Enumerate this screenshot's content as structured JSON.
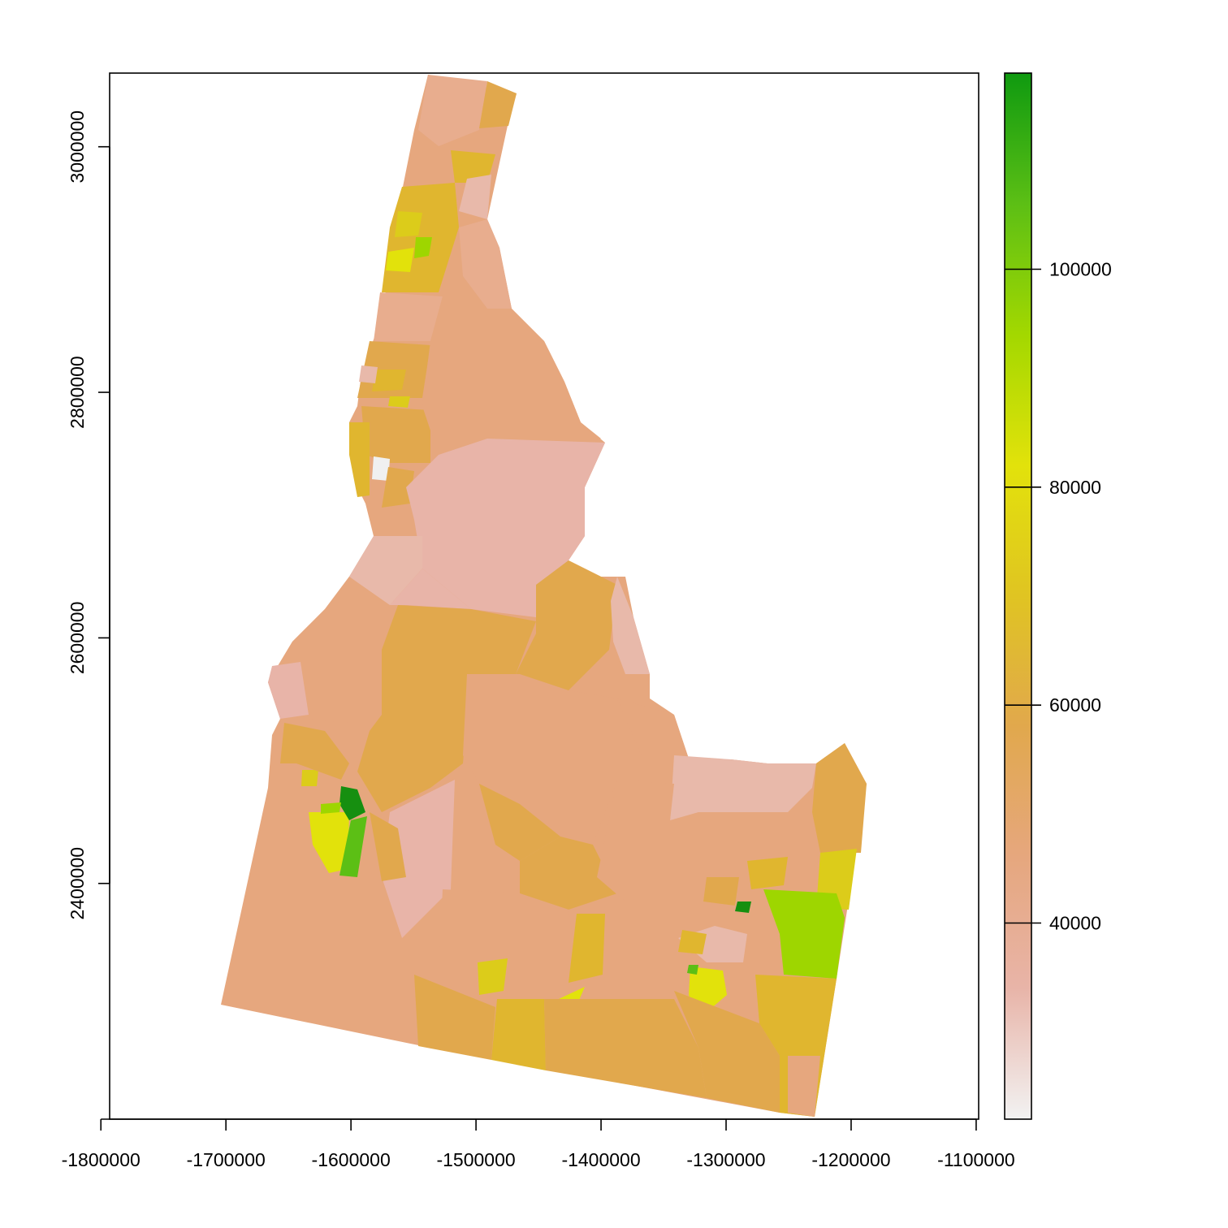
{
  "map": {
    "type": "raster-choropleth",
    "x_axis": {
      "ticks": [
        -1800000,
        -1700000,
        -1600000,
        -1500000,
        -1400000,
        -1300000,
        -1200000,
        -1100000
      ],
      "tick_labels": [
        "-1800000",
        "-1700000",
        "-1600000",
        "-1500000",
        "-1400000",
        "-1300000",
        "-1200000",
        "-1100000"
      ],
      "range": [
        -1793000,
        -1098000
      ]
    },
    "y_axis": {
      "ticks": [
        2400000,
        2600000,
        2800000,
        3000000
      ],
      "tick_labels": [
        "2400000",
        "2600000",
        "2800000",
        "3000000"
      ],
      "range": [
        2208000,
        3060000
      ]
    },
    "legend": {
      "placement": "right",
      "range": [
        22000,
        118000
      ],
      "ticks": [
        40000,
        60000,
        80000,
        100000
      ],
      "tick_labels": [
        "40000",
        "60000",
        "80000",
        "100000"
      ],
      "colors": [
        "#f2f2f2",
        "#e8b4a8",
        "#e6a77e",
        "#e1a84d",
        "#e0c422",
        "#e2e20b",
        "#a3d800",
        "#5cbf15",
        "#0f9a10"
      ]
    },
    "regions_colors": {
      "low": "#e8b4a8",
      "mid": "#e6a77e",
      "midhigh": "#e1a84d",
      "gold": "#e0b62f",
      "yellow": "#e2e20b",
      "lime": "#9ed600",
      "green": "#5cbf15",
      "darkgreen": "#168f10",
      "pale": "#f0f0f0"
    }
  }
}
